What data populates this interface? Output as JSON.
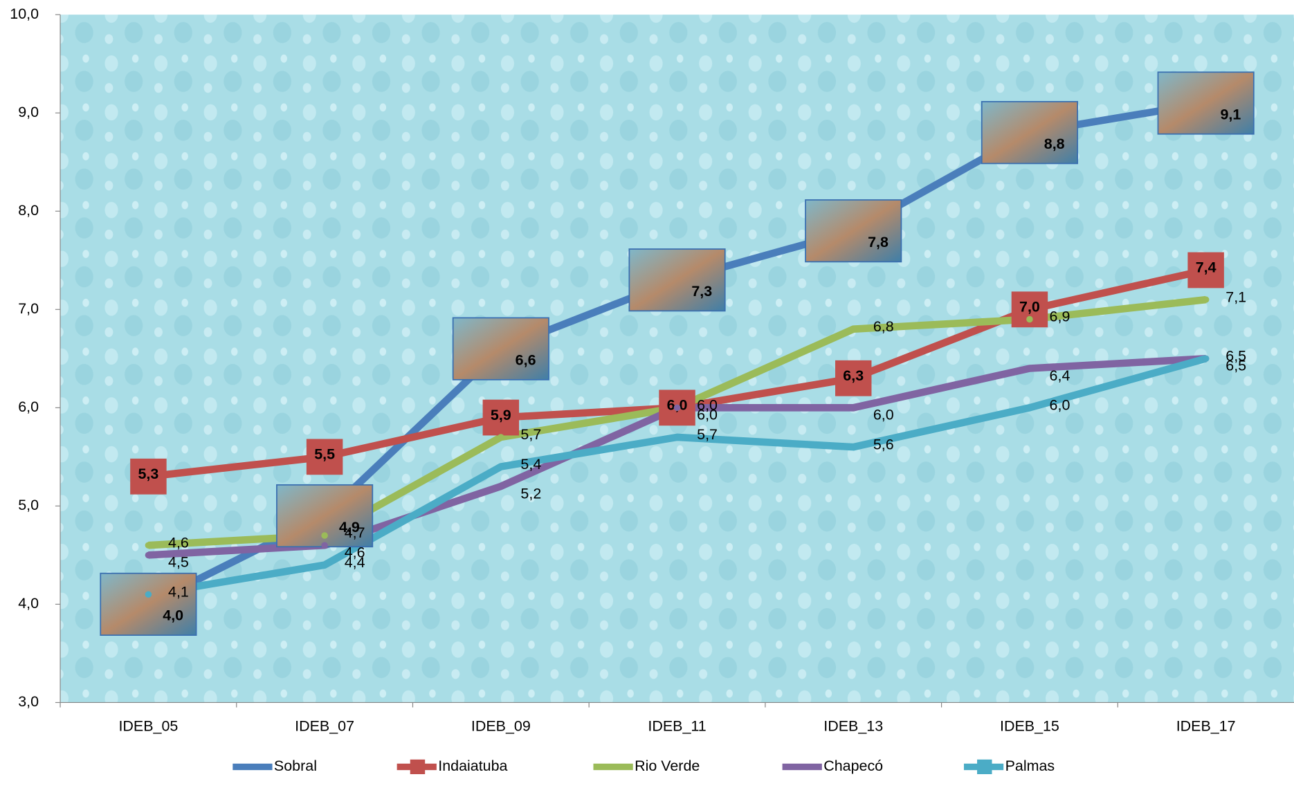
{
  "chart_data": {
    "type": "line",
    "categories": [
      "IDEB_05",
      "IDEB_07",
      "IDEB_09",
      "IDEB_11",
      "IDEB_13",
      "IDEB_15",
      "IDEB_17"
    ],
    "ylim": [
      3,
      10
    ],
    "yticks": [
      {
        "value": 3,
        "label": "3,0"
      },
      {
        "value": 4,
        "label": "4,0"
      },
      {
        "value": 5,
        "label": "5,0"
      },
      {
        "value": 6,
        "label": "6,0"
      },
      {
        "value": 7,
        "label": "7,0"
      },
      {
        "value": 8,
        "label": "8,0"
      },
      {
        "value": 9,
        "label": "9,0"
      },
      {
        "value": 10,
        "label": "10,0"
      }
    ],
    "legend": "bottom",
    "series": [
      {
        "name": "Sobral",
        "color": "#4a7ebb",
        "values": [
          4.0,
          4.9,
          6.6,
          7.3,
          7.8,
          8.8,
          9.1
        ],
        "value_labels": [
          "4,0",
          "4,9",
          "6,6",
          "7,3",
          "7,8",
          "8,8",
          "9,1"
        ]
      },
      {
        "name": "Indaiatuba",
        "color": "#c0504d",
        "values": [
          5.3,
          5.5,
          5.9,
          6.0,
          6.3,
          7.0,
          7.4
        ],
        "value_labels": [
          "5,3",
          "5,5",
          "5,9",
          "6,0",
          "6,3",
          "7,0",
          "7,4"
        ]
      },
      {
        "name": "Rio Verde",
        "color": "#9bbb59",
        "values": [
          4.6,
          4.7,
          5.7,
          6.0,
          6.8,
          6.9,
          7.1
        ],
        "value_labels": [
          "4,6",
          "4,7",
          "5,7",
          "6,0",
          "6,8",
          "6,9",
          "7,1"
        ]
      },
      {
        "name": "Chapecó",
        "color": "#8064a2",
        "values": [
          4.5,
          4.6,
          5.2,
          6.0,
          6.0,
          6.4,
          6.5
        ],
        "value_labels": [
          "4,5",
          "4,6",
          "5,2",
          "6,0",
          "6,0",
          "6,4",
          "6,5"
        ]
      },
      {
        "name": "Palmas",
        "color": "#4bacc6",
        "values": [
          4.1,
          4.4,
          5.4,
          5.7,
          5.6,
          6.0,
          6.5
        ],
        "value_labels": [
          "4,1",
          "4,4",
          "5,4",
          "5,7",
          "5,6",
          "6,0",
          "6,5"
        ]
      }
    ]
  }
}
